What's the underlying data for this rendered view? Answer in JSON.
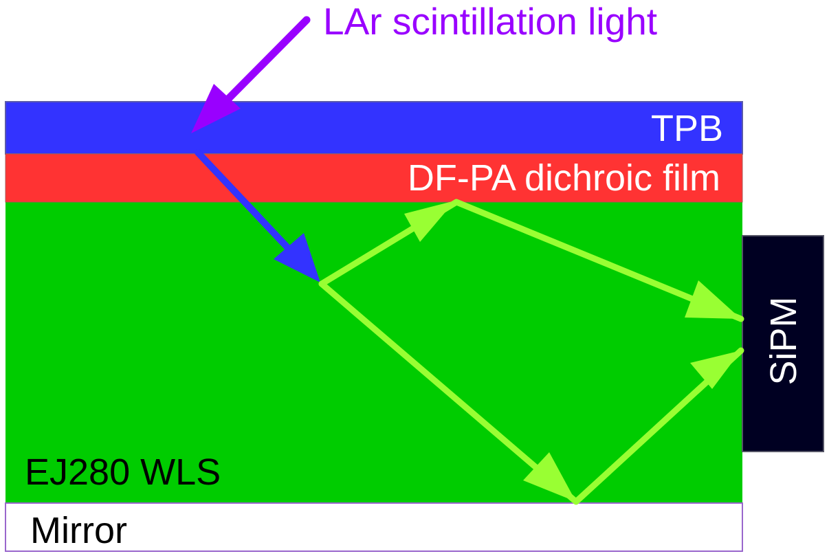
{
  "labels": {
    "source": "LAr scintillation light",
    "tpb": "TPB",
    "dichroic": "DF-PA dichroic film",
    "wls": "EJ280 WLS",
    "mirror": "Mirror",
    "sipm": "SiPM"
  },
  "colors": {
    "tpb_layer": "#3333ff",
    "dichroic_layer": "#ff3333",
    "wls_layer": "#00cc00",
    "mirror_layer": "#ffffff",
    "sipm_block": "#000022",
    "uv_arrow": "#9900ff",
    "blue_arrow": "#3333ff",
    "green_arrow": "#99ff33"
  }
}
